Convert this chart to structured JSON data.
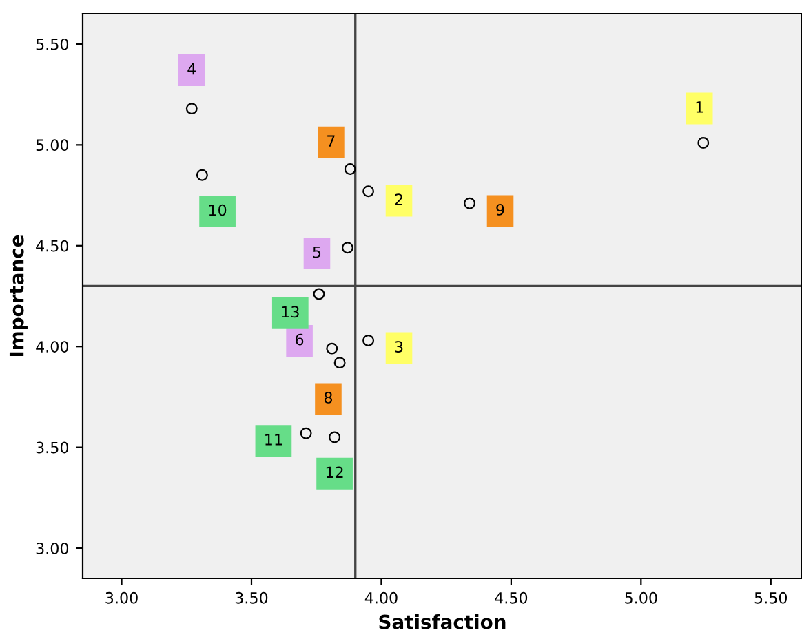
{
  "chart_data": {
    "type": "scatter",
    "xlabel": "Satisfaction",
    "ylabel": "Importance",
    "xlim": [
      2.85,
      5.62
    ],
    "ylim": [
      2.85,
      5.65
    ],
    "xticks": [
      {
        "value": 3,
        "label": "3.00"
      },
      {
        "value": 3.5,
        "label": "3.50"
      },
      {
        "value": 4,
        "label": "4.00"
      },
      {
        "value": 4.5,
        "label": "4.50"
      },
      {
        "value": 5,
        "label": "5.00"
      },
      {
        "value": 5.5,
        "label": "5.50"
      }
    ],
    "yticks": [
      {
        "value": 3,
        "label": "3.00"
      },
      {
        "value": 3.5,
        "label": "3.50"
      },
      {
        "value": 4,
        "label": "4.00"
      },
      {
        "value": 4.5,
        "label": "4.50"
      },
      {
        "value": 5,
        "label": "5.00"
      },
      {
        "value": 5.5,
        "label": "5.50"
      }
    ],
    "marker": "circle",
    "grid": false,
    "legend": false,
    "series": [
      {
        "color": "#000000",
        "x": [
          5.24,
          3.95,
          3.95,
          3.27,
          3.87,
          3.81,
          3.88,
          3.84,
          4.34,
          3.31,
          3.71,
          3.82,
          3.76
        ],
        "values": [
          5.01,
          4.77,
          4.03,
          5.18,
          4.49,
          3.99,
          4.88,
          3.92,
          4.71,
          4.85,
          3.57,
          3.55,
          4.26
        ]
      }
    ],
    "annotations": [
      {
        "text": "1",
        "x": 5.24,
        "y": 5.01
      },
      {
        "text": "2",
        "x": 3.95,
        "y": 4.77
      },
      {
        "text": "3",
        "x": 3.95,
        "y": 4.03
      },
      {
        "text": "4",
        "x": 3.27,
        "y": 5.18
      },
      {
        "text": "5",
        "x": 3.87,
        "y": 4.49
      },
      {
        "text": "6",
        "x": 3.81,
        "y": 3.99
      },
      {
        "text": "7",
        "x": 3.88,
        "y": 4.88
      },
      {
        "text": "8",
        "x": 3.84,
        "y": 3.92
      },
      {
        "text": "9",
        "x": 4.34,
        "y": 4.71
      },
      {
        "text": "10",
        "x": 3.31,
        "y": 4.85
      },
      {
        "text": "11",
        "x": 3.71,
        "y": 3.57
      },
      {
        "text": "12",
        "x": 3.82,
        "y": 3.55
      },
      {
        "text": "13",
        "x": 3.76,
        "y": 4.26
      }
    ],
    "ref_lines": [
      {
        "axis": "x",
        "value": 3.9,
        "color": "#444444"
      },
      {
        "axis": "y",
        "value": 4.3,
        "color": "#444444"
      }
    ]
  }
}
